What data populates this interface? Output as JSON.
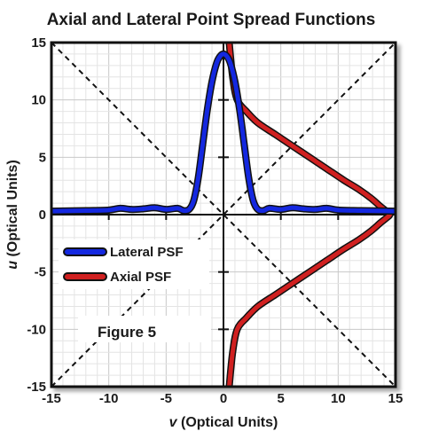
{
  "chart_data": {
    "type": "line",
    "title": "Axial and Lateral Point Spread Functions",
    "xlabel_var": "v",
    "xlabel_rest": " (Optical Units)",
    "ylabel_var": "u",
    "ylabel_rest": " (Optical Units)",
    "xlim": [
      -15,
      15
    ],
    "ylim": [
      -15,
      15
    ],
    "x_ticks": [
      -15,
      -10,
      -5,
      0,
      5,
      10,
      15
    ],
    "y_ticks": [
      -15,
      -10,
      -5,
      0,
      5,
      10,
      15
    ],
    "grid": true,
    "legend_position": "left-center",
    "annotation": "Figure 5",
    "series": [
      {
        "name": "Lateral PSF",
        "color": "#1428e0",
        "x": [
          -15,
          -12,
          -10,
          -9,
          -8,
          -7,
          -6,
          -5,
          -4,
          -3.5,
          -3,
          -2.6,
          -2.2,
          -1.8,
          -1.4,
          -1,
          -0.6,
          -0.3,
          0,
          0.3,
          0.6,
          1,
          1.4,
          1.8,
          2.2,
          2.6,
          3,
          3.5,
          4,
          5,
          6,
          7,
          8,
          9,
          10,
          12,
          15
        ],
        "y": [
          0.3,
          0.35,
          0.4,
          0.55,
          0.45,
          0.5,
          0.6,
          0.45,
          0.55,
          0.35,
          0.45,
          1.2,
          3.2,
          6.2,
          9.2,
          11.6,
          13.2,
          13.8,
          14.0,
          13.8,
          13.2,
          11.6,
          9.2,
          6.2,
          3.2,
          1.2,
          0.45,
          0.35,
          0.55,
          0.45,
          0.6,
          0.5,
          0.45,
          0.55,
          0.4,
          0.35,
          0.3
        ]
      },
      {
        "name": "Axial PSF",
        "color": "#d02020",
        "x": [
          0.5,
          0.8,
          1.2,
          2.0,
          3.0,
          4.5,
          6.0,
          7.5,
          9.0,
          10.5,
          11.8,
          12.9,
          13.7,
          14.2,
          14.5,
          14.2,
          13.7,
          12.9,
          11.8,
          10.5,
          9.0,
          7.5,
          6.0,
          4.5,
          3.0,
          2.0,
          1.2,
          0.8,
          0.5
        ],
        "y": [
          15,
          12,
          10,
          9.0,
          8.0,
          7.0,
          6.0,
          5.0,
          4.0,
          3.0,
          2.2,
          1.4,
          0.7,
          0.3,
          0,
          -0.3,
          -0.7,
          -1.4,
          -2.2,
          -3.0,
          -4.0,
          -5.0,
          -6.0,
          -7.0,
          -8.0,
          -9.0,
          -10,
          -12,
          -15
        ]
      }
    ],
    "reference_lines": [
      {
        "x": [
          -15,
          15
        ],
        "y": [
          15,
          -15
        ],
        "style": "dashed"
      },
      {
        "x": [
          -15,
          15
        ],
        "y": [
          -15,
          15
        ],
        "style": "dashed"
      }
    ]
  }
}
